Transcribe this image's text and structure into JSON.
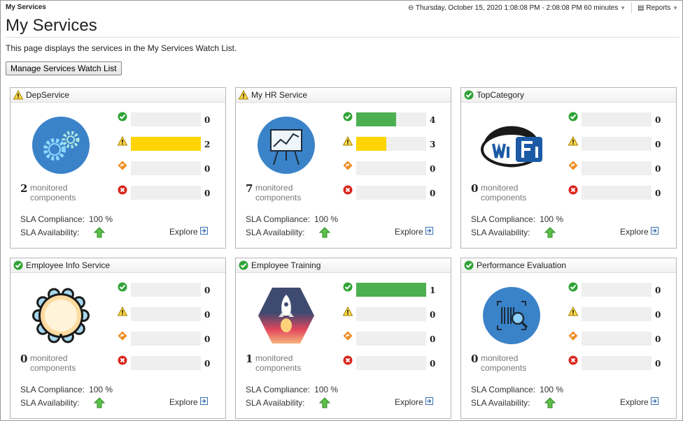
{
  "header": {
    "breadcrumb": "My Services",
    "time_range": "Thursday, October 15, 2020 1:08:08 PM - 2:08:08 PM 60 minutes",
    "reports": "Reports"
  },
  "page": {
    "title": "My Services",
    "description": "This page displays the services in the My Services Watch List.",
    "manage_button": "Manage Services Watch List"
  },
  "labels": {
    "monitored": "monitored",
    "components": "components",
    "sla_compliance": "SLA Compliance:",
    "sla_availability": "SLA Availability:",
    "explore": "Explore"
  },
  "colors": {
    "normal": "#4caf50",
    "warning": "#ffd400"
  },
  "services": [
    {
      "name": "DepService",
      "status": "warning",
      "image": "gears",
      "monitored": "2",
      "counts": {
        "normal": "0",
        "warning": "2",
        "critical": "0",
        "fatal": "0"
      },
      "sla_compliance": "100 %",
      "sla_availability": "up"
    },
    {
      "name": "My HR Service",
      "status": "warning",
      "image": "presentation",
      "monitored": "7",
      "counts": {
        "normal": "4",
        "warning": "3",
        "critical": "0",
        "fatal": "0"
      },
      "sla_compliance": "100 %",
      "sla_availability": "up"
    },
    {
      "name": "TopCategory",
      "status": "normal",
      "image": "wifi",
      "monitored": "0",
      "counts": {
        "normal": "0",
        "warning": "0",
        "critical": "0",
        "fatal": "0"
      },
      "sla_compliance": "100 %",
      "sla_availability": "up"
    },
    {
      "name": "Employee Info Service",
      "status": "normal",
      "image": "flower",
      "monitored": "0",
      "counts": {
        "normal": "0",
        "warning": "0",
        "critical": "0",
        "fatal": "0"
      },
      "sla_compliance": "100 %",
      "sla_availability": "up"
    },
    {
      "name": "Employee Training",
      "status": "normal",
      "image": "rocket",
      "monitored": "1",
      "counts": {
        "normal": "1",
        "warning": "0",
        "critical": "0",
        "fatal": "0"
      },
      "sla_compliance": "100 %",
      "sla_availability": "up"
    },
    {
      "name": "Performance Evaluation",
      "status": "normal",
      "image": "barcode-search",
      "monitored": "0",
      "counts": {
        "normal": "0",
        "warning": "0",
        "critical": "0",
        "fatal": "0"
      },
      "sla_compliance": "100 %",
      "sla_availability": "up"
    }
  ]
}
